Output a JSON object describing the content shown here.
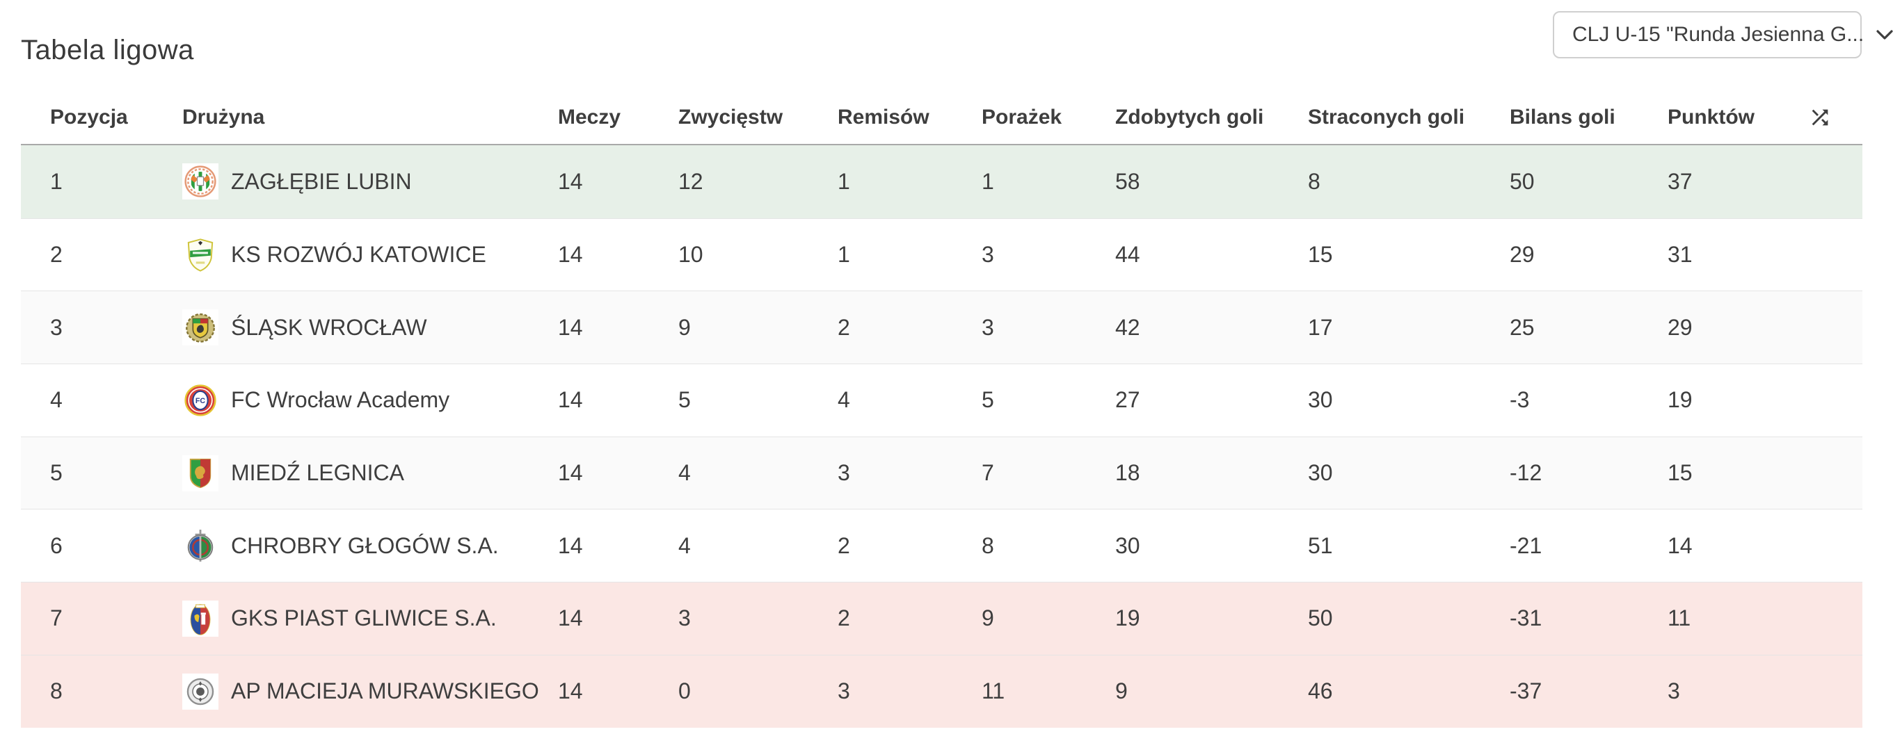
{
  "page": {
    "title": "Tabela ligowa"
  },
  "filter": {
    "selected": "CLJ U-15 \"Runda Jesienna G..."
  },
  "table": {
    "columns": {
      "position": "Pozycja",
      "team": "Drużyna",
      "matches": "Meczy",
      "wins": "Zwycięstw",
      "draws": "Remisów",
      "losses": "Porażek",
      "goals_for": "Zdobytych goli",
      "goals_against": "Straconych goli",
      "goal_diff": "Bilans goli",
      "points": "Punktów"
    },
    "rows": [
      {
        "position": "1",
        "team": "ZAGŁĘBIE LUBIN",
        "badge": "zaglebie-lubin",
        "matches": "14",
        "wins": "12",
        "draws": "1",
        "losses": "1",
        "goals_for": "58",
        "goals_against": "8",
        "goal_diff": "50",
        "points": "37",
        "highlight": "promotion"
      },
      {
        "position": "2",
        "team": "KS ROZWÓJ KATOWICE",
        "badge": "rozwoj-katowice",
        "matches": "14",
        "wins": "10",
        "draws": "1",
        "losses": "3",
        "goals_for": "44",
        "goals_against": "15",
        "goal_diff": "29",
        "points": "31",
        "highlight": "none"
      },
      {
        "position": "3",
        "team": "ŚLĄSK WROCŁAW",
        "badge": "slask-wroclaw",
        "matches": "14",
        "wins": "9",
        "draws": "2",
        "losses": "3",
        "goals_for": "42",
        "goals_against": "17",
        "goal_diff": "25",
        "points": "29",
        "highlight": "none"
      },
      {
        "position": "4",
        "team": "FC Wrocław Academy",
        "badge": "fc-wroclaw-academy",
        "matches": "14",
        "wins": "5",
        "draws": "4",
        "losses": "5",
        "goals_for": "27",
        "goals_against": "30",
        "goal_diff": "-3",
        "points": "19",
        "highlight": "none"
      },
      {
        "position": "5",
        "team": "MIEDŹ LEGNICA",
        "badge": "miedz-legnica",
        "matches": "14",
        "wins": "4",
        "draws": "3",
        "losses": "7",
        "goals_for": "18",
        "goals_against": "30",
        "goal_diff": "-12",
        "points": "15",
        "highlight": "none"
      },
      {
        "position": "6",
        "team": "CHROBRY GŁOGÓW S.A.",
        "badge": "chrobry-glogow",
        "matches": "14",
        "wins": "4",
        "draws": "2",
        "losses": "8",
        "goals_for": "30",
        "goals_against": "51",
        "goal_diff": "-21",
        "points": "14",
        "highlight": "none"
      },
      {
        "position": "7",
        "team": "GKS PIAST GLIWICE S.A.",
        "badge": "piast-gliwice",
        "matches": "14",
        "wins": "3",
        "draws": "2",
        "losses": "9",
        "goals_for": "19",
        "goals_against": "50",
        "goal_diff": "-31",
        "points": "11",
        "highlight": "relegation"
      },
      {
        "position": "8",
        "team": "AP MACIEJA MURAWSKIEGO",
        "badge": "ap-murawskiego",
        "matches": "14",
        "wins": "0",
        "draws": "3",
        "losses": "11",
        "goals_for": "9",
        "goals_against": "46",
        "goal_diff": "-37",
        "points": "3",
        "highlight": "relegation"
      }
    ]
  },
  "colors": {
    "promotion_row": "#e7f0e8",
    "relegation_row": "#fbe7e4",
    "zebra_row": "#fafafa",
    "row_divider": "#e5e5e5",
    "header_divider": "#a9a9a9",
    "button_border": "#cfcfcf",
    "text": "#3e3e3e"
  }
}
